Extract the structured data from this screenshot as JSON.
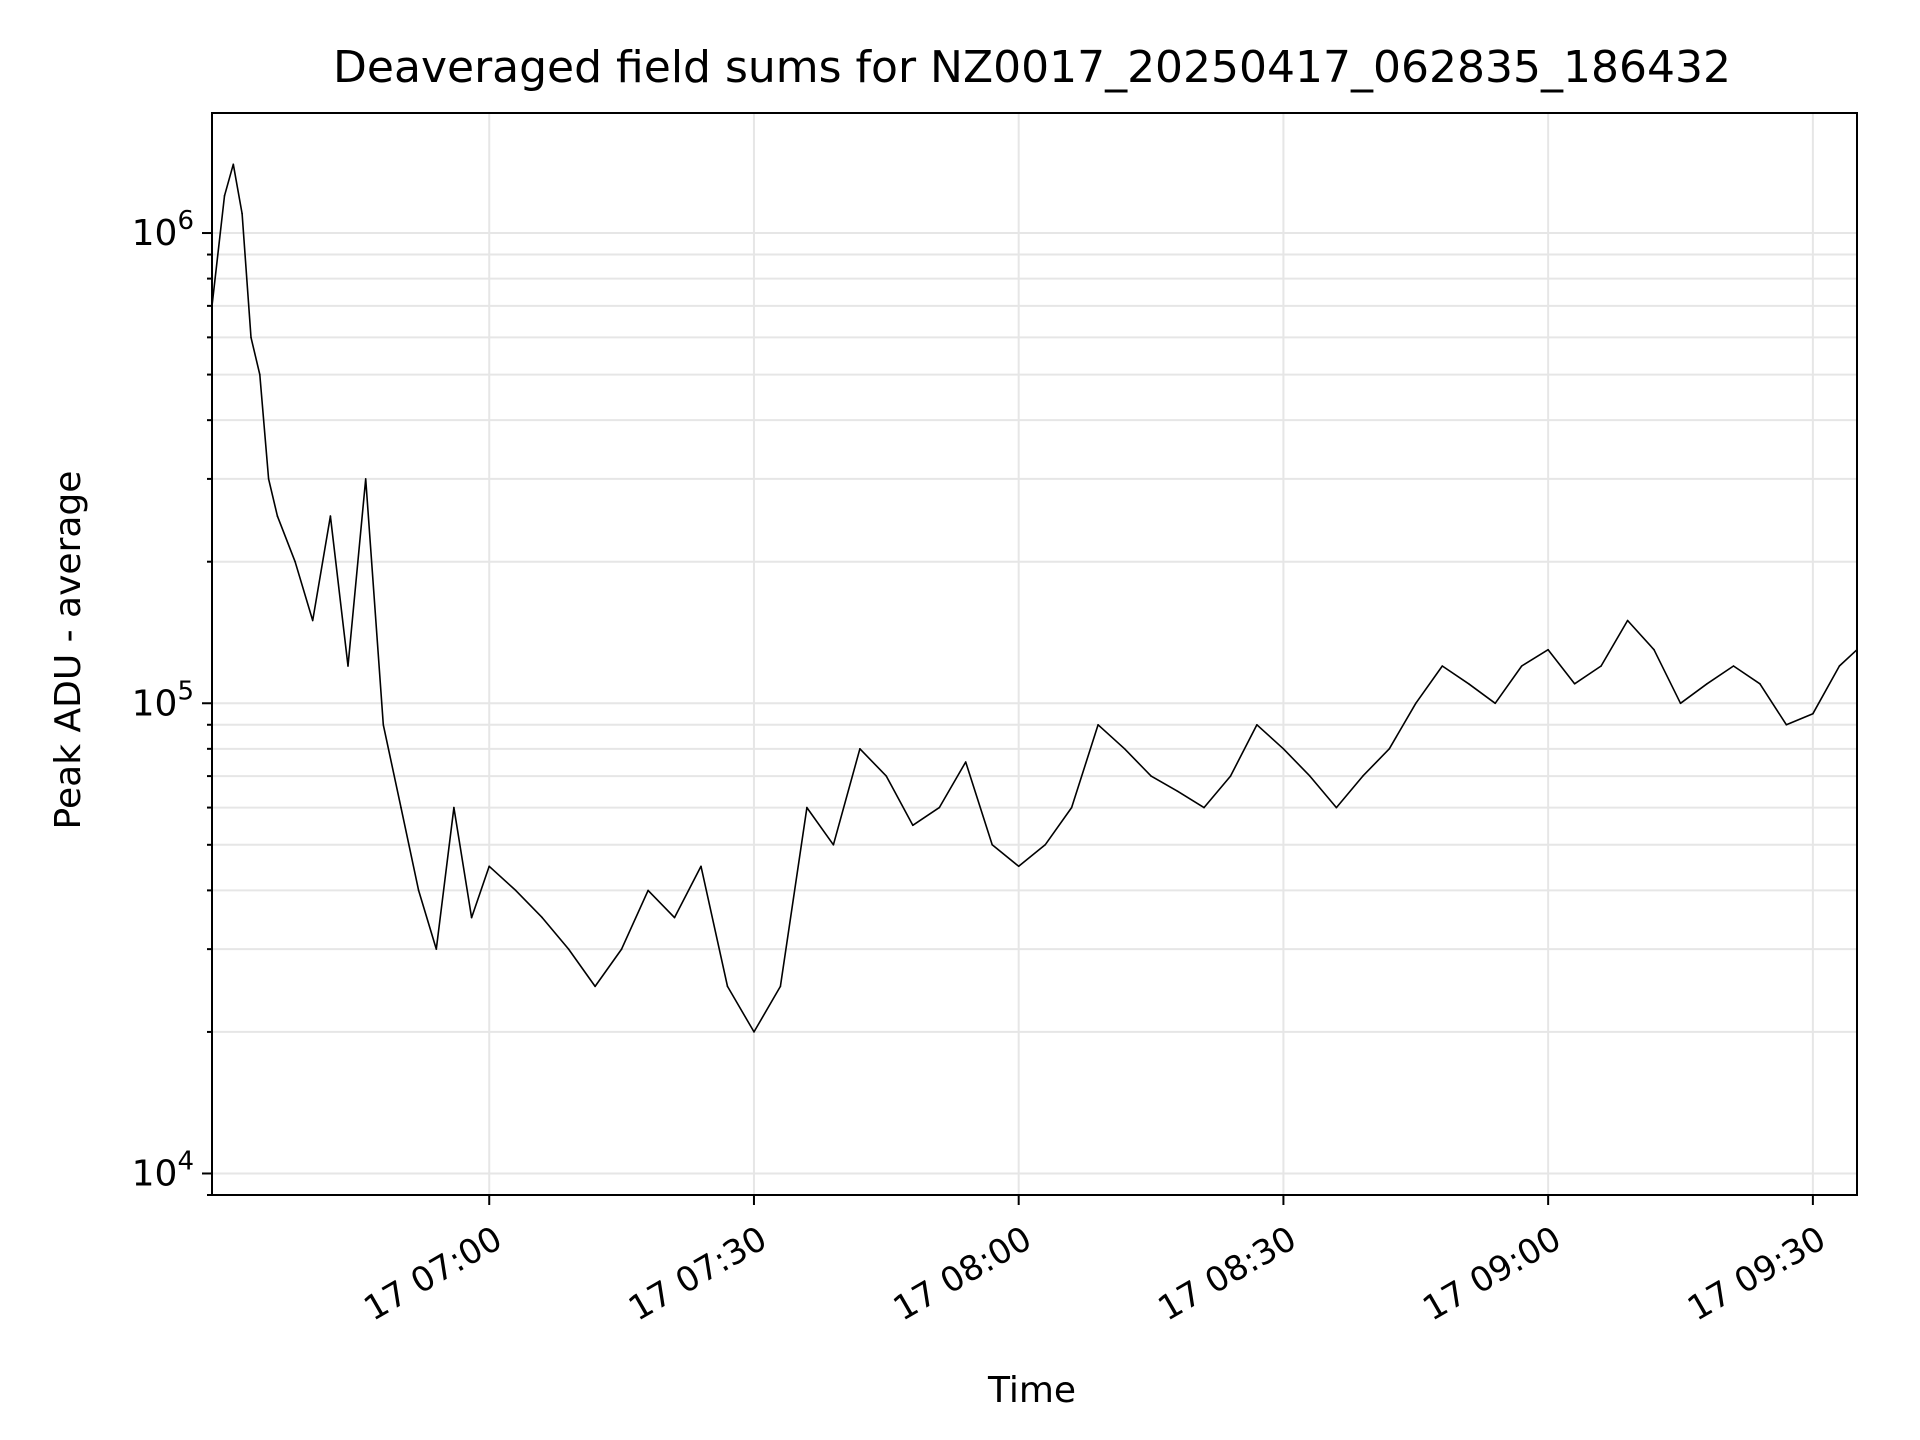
{
  "chart_data": {
    "type": "line",
    "title": "Deaveraged field sums for NZ0017_20250417_062835_186432",
    "xlabel": "Time",
    "ylabel": "Peak ADU - average",
    "x_tick_labels": [
      "17 07:00",
      "17 07:30",
      "17 08:00",
      "17 08:30",
      "17 09:00",
      "17 09:30"
    ],
    "y_tick_labels": [
      {
        "base": "10",
        "exp": "4"
      },
      {
        "base": "10",
        "exp": "5"
      },
      {
        "base": "10",
        "exp": "6"
      }
    ],
    "y_scale": "log",
    "ylim": [
      9000,
      1800000
    ],
    "xlim": [
      "2025-04-17 06:28:35",
      "2025-04-17 09:35:00"
    ],
    "grid": true,
    "line_color": "#000000",
    "grid_color": "#e6e6e6",
    "series": [
      {
        "x": [
          "2025-04-17 06:28:35",
          "2025-04-17 06:30:00",
          "2025-04-17 06:31:00",
          "2025-04-17 06:32:00",
          "2025-04-17 06:33:00",
          "2025-04-17 06:34:00",
          "2025-04-17 06:35:00",
          "2025-04-17 06:36:00",
          "2025-04-17 06:38:00",
          "2025-04-17 06:40:00",
          "2025-04-17 06:42:00",
          "2025-04-17 06:44:00",
          "2025-04-17 06:46:00",
          "2025-04-17 06:48:00",
          "2025-04-17 06:50:00",
          "2025-04-17 06:52:00",
          "2025-04-17 06:54:00",
          "2025-04-17 06:56:00",
          "2025-04-17 06:58:00",
          "2025-04-17 07:00:00",
          "2025-04-17 07:03:00",
          "2025-04-17 07:06:00",
          "2025-04-17 07:09:00",
          "2025-04-17 07:12:00",
          "2025-04-17 07:15:00",
          "2025-04-17 07:18:00",
          "2025-04-17 07:21:00",
          "2025-04-17 07:24:00",
          "2025-04-17 07:27:00",
          "2025-04-17 07:30:00",
          "2025-04-17 07:33:00",
          "2025-04-17 07:36:00",
          "2025-04-17 07:39:00",
          "2025-04-17 07:42:00",
          "2025-04-17 07:45:00",
          "2025-04-17 07:48:00",
          "2025-04-17 07:51:00",
          "2025-04-17 07:54:00",
          "2025-04-17 07:57:00",
          "2025-04-17 08:00:00",
          "2025-04-17 08:03:00",
          "2025-04-17 08:06:00",
          "2025-04-17 08:09:00",
          "2025-04-17 08:12:00",
          "2025-04-17 08:15:00",
          "2025-04-17 08:18:00",
          "2025-04-17 08:21:00",
          "2025-04-17 08:24:00",
          "2025-04-17 08:27:00",
          "2025-04-17 08:30:00",
          "2025-04-17 08:33:00",
          "2025-04-17 08:36:00",
          "2025-04-17 08:39:00",
          "2025-04-17 08:42:00",
          "2025-04-17 08:45:00",
          "2025-04-17 08:48:00",
          "2025-04-17 08:51:00",
          "2025-04-17 08:54:00",
          "2025-04-17 08:57:00",
          "2025-04-17 09:00:00",
          "2025-04-17 09:03:00",
          "2025-04-17 09:06:00",
          "2025-04-17 09:09:00",
          "2025-04-17 09:12:00",
          "2025-04-17 09:15:00",
          "2025-04-17 09:18:00",
          "2025-04-17 09:21:00",
          "2025-04-17 09:24:00",
          "2025-04-17 09:27:00",
          "2025-04-17 09:30:00",
          "2025-04-17 09:33:00",
          "2025-04-17 09:35:00"
        ],
        "y": [
          700000,
          1200000,
          1400000,
          1100000,
          600000,
          500000,
          300000,
          250000,
          200000,
          150000,
          250000,
          120000,
          300000,
          90000,
          60000,
          40000,
          30000,
          60000,
          35000,
          45000,
          40000,
          35000,
          30000,
          25000,
          30000,
          40000,
          35000,
          45000,
          25000,
          20000,
          25000,
          60000,
          50000,
          80000,
          70000,
          55000,
          60000,
          75000,
          50000,
          45000,
          50000,
          60000,
          90000,
          80000,
          70000,
          65000,
          60000,
          70000,
          90000,
          80000,
          70000,
          60000,
          70000,
          80000,
          100000,
          120000,
          110000,
          100000,
          120000,
          130000,
          110000,
          120000,
          150000,
          130000,
          100000,
          110000,
          120000,
          110000,
          90000,
          95000,
          120000,
          130000
        ]
      }
    ]
  }
}
